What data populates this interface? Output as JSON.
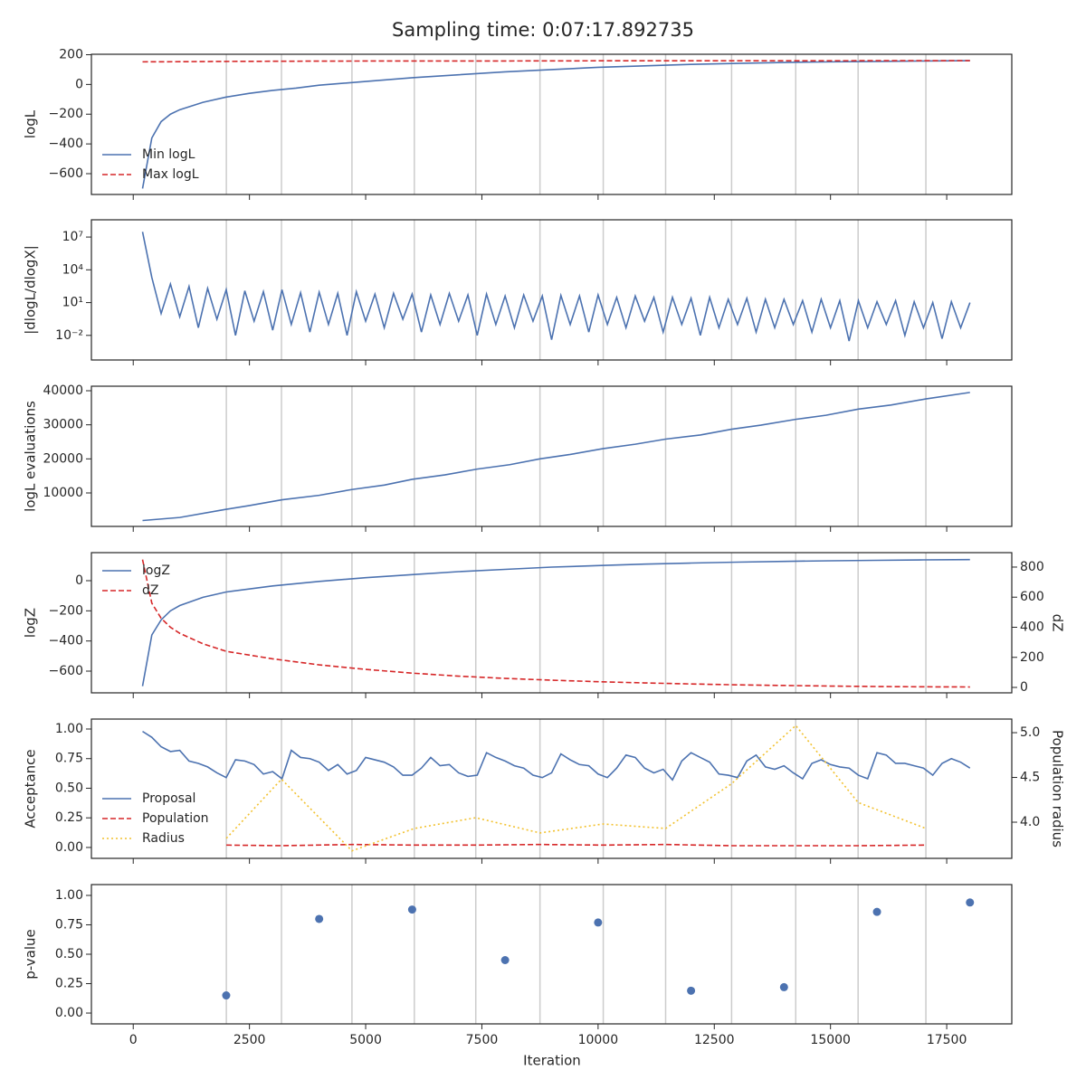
{
  "title": "Sampling time: 0:07:17.892735",
  "shared_x": {
    "xlabel": "Iteration",
    "xlim": [
      -900,
      18900
    ],
    "xticks": [
      0,
      2500,
      5000,
      7500,
      10000,
      12500,
      15000,
      17500
    ],
    "vlines": [
      2003,
      3189,
      4705,
      6047,
      7369,
      8750,
      10111,
      11453,
      12872,
      14252,
      15594,
      17052
    ]
  },
  "chart_data": [
    {
      "type": "line",
      "ylabel": "logL",
      "ylim": [
        -740,
        203
      ],
      "legend": "lower left",
      "yticks": [
        {
          "value": -600,
          "label": "−600"
        },
        {
          "value": -400,
          "label": "−400"
        },
        {
          "value": -200,
          "label": "−200"
        },
        0,
        200
      ],
      "series": [
        {
          "name": "Min logL",
          "color": "#4c72b0",
          "style": "solid",
          "x": [
            200,
            400,
            600,
            800,
            1000,
            1500,
            2000,
            2500,
            3000,
            3500,
            4000,
            5000,
            6000,
            7000,
            8000,
            9000,
            10000,
            11000,
            12000,
            13000,
            14000,
            15000,
            16000,
            17000,
            18000
          ],
          "values": [
            -700,
            -360,
            -250,
            -200,
            -170,
            -120,
            -85,
            -60,
            -40,
            -25,
            -5,
            20,
            45,
            65,
            85,
            100,
            115,
            125,
            135,
            142,
            148,
            152,
            155,
            158,
            160
          ]
        },
        {
          "name": "Max logL",
          "color": "#d62728",
          "style": "dashed",
          "x": [
            200,
            1000,
            2000,
            4000,
            6000,
            8000,
            10000,
            12000,
            14000,
            16000,
            18000
          ],
          "values": [
            152,
            153,
            155,
            157,
            158,
            158,
            159,
            159,
            159,
            160,
            160
          ]
        }
      ]
    },
    {
      "type": "line",
      "ylabel": "|dlogL/dlogX|",
      "log_y": true,
      "ylim": [
        5.6e-05,
        380000000.0
      ],
      "yticks": [
        {
          "value": 0.01,
          "label": "10⁻²"
        },
        {
          "value": 10,
          "label": "10¹"
        },
        {
          "value": 10000,
          "label": "10⁴"
        },
        {
          "value": 10000000,
          "label": "10⁷"
        }
      ],
      "series": [
        {
          "color": "#4c72b0",
          "style": "solid",
          "x": [
            200,
            400,
            600,
            800,
            1000,
            1200,
            1400,
            1600,
            1800,
            2000,
            2200,
            2400,
            2600,
            2800,
            3000,
            3200,
            3400,
            3600,
            3800,
            4000,
            4200,
            4400,
            4600,
            4800,
            5000,
            5200,
            5400,
            5600,
            5800,
            6000,
            6200,
            6400,
            6600,
            6800,
            7000,
            7200,
            7400,
            7600,
            7800,
            8000,
            8200,
            8400,
            8600,
            8800,
            9000,
            9200,
            9400,
            9600,
            9800,
            10000,
            10200,
            10400,
            10600,
            10800,
            11000,
            11200,
            11400,
            11600,
            11800,
            12000,
            12200,
            12400,
            12600,
            12800,
            13000,
            13200,
            13400,
            13600,
            13800,
            14000,
            14200,
            14400,
            14600,
            14800,
            15000,
            15200,
            15400,
            15600,
            15800,
            16000,
            16200,
            16400,
            16600,
            16800,
            17000,
            17200,
            17400,
            17600,
            17800,
            18000
          ],
          "values": [
            30000000,
            2000,
            1,
            500,
            0.5,
            300,
            0.05,
            200,
            0.3,
            150,
            0.01,
            120,
            0.2,
            100,
            0.03,
            150,
            0.1,
            80,
            0.02,
            90,
            0.1,
            70,
            0.01,
            100,
            0.2,
            60,
            0.05,
            70,
            0.3,
            60,
            0.02,
            50,
            0.1,
            70,
            0.2,
            50,
            0.01,
            60,
            0.1,
            40,
            0.05,
            50,
            0.2,
            40,
            0.004,
            45,
            0.1,
            40,
            0.02,
            50,
            0.1,
            30,
            0.05,
            40,
            0.2,
            30,
            0.02,
            30,
            0.1,
            25,
            0.01,
            30,
            0.05,
            20,
            0.1,
            25,
            0.02,
            20,
            0.05,
            20,
            0.1,
            15,
            0.02,
            20,
            0.05,
            15,
            0.003,
            15,
            0.05,
            12,
            0.1,
            15,
            0.01,
            12,
            0.05,
            10,
            0.005,
            12,
            0.05,
            10
          ]
        }
      ]
    },
    {
      "type": "line",
      "ylabel": "logL evaluations",
      "ylim": [
        177,
        41327
      ],
      "yticks": [
        10000,
        20000,
        30000,
        40000
      ],
      "series": [
        {
          "color": "#4c72b0",
          "style": "solid",
          "x": [
            200,
            1000,
            2000,
            2500,
            3200,
            4000,
            4700,
            5400,
            6000,
            6700,
            7400,
            8100,
            8750,
            9400,
            10100,
            10800,
            11450,
            12200,
            12870,
            13500,
            14250,
            14900,
            15600,
            16300,
            17050,
            18000
          ],
          "values": [
            1900,
            2800,
            5200,
            6300,
            8000,
            9300,
            11000,
            12300,
            14000,
            15300,
            17000,
            18300,
            20000,
            21300,
            23000,
            24300,
            25800,
            27000,
            28700,
            29900,
            31600,
            32800,
            34600,
            35800,
            37600,
            39500
          ]
        }
      ]
    },
    {
      "type": "line",
      "ylabel": "logZ",
      "y2label": "dZ",
      "legend": "upper left",
      "ylim": [
        -744,
        186
      ],
      "y2lim": [
        -36,
        896
      ],
      "yticks": [
        {
          "value": -600,
          "label": "−600"
        },
        {
          "value": -400,
          "label": "−400"
        },
        {
          "value": -200,
          "label": "−200"
        },
        0
      ],
      "y2ticks": [
        0,
        200,
        400,
        600,
        800
      ],
      "series": [
        {
          "name": "logZ",
          "color": "#4c72b0",
          "style": "solid",
          "x": [
            200,
            400,
            600,
            800,
            1000,
            1500,
            2000,
            3000,
            4000,
            5000,
            6000,
            7000,
            8000,
            9000,
            10000,
            11000,
            12000,
            13000,
            14000,
            15000,
            16000,
            17000,
            18000
          ],
          "values": [
            -700,
            -360,
            -260,
            -200,
            -165,
            -110,
            -75,
            -35,
            -5,
            20,
            40,
            60,
            75,
            90,
            100,
            110,
            117,
            123,
            128,
            132,
            135,
            138,
            140
          ]
        },
        {
          "name": "dZ",
          "color": "#d62728",
          "style": "dashed",
          "axis": "y2",
          "x": [
            200,
            400,
            600,
            800,
            1000,
            1500,
            2000,
            3000,
            4000,
            5000,
            6000,
            7000,
            8000,
            9000,
            10000,
            11000,
            12000,
            13000,
            14000,
            15000,
            16000,
            17000,
            18000
          ],
          "values": [
            850,
            560,
            460,
            400,
            360,
            290,
            240,
            190,
            150,
            120,
            95,
            75,
            60,
            48,
            38,
            30,
            23,
            17,
            13,
            9,
            6,
            4,
            3
          ]
        }
      ]
    },
    {
      "type": "line",
      "ylabel": "Acceptance",
      "y2label": "Population radius",
      "legend": "lower left",
      "ylim": [
        -0.092,
        1.084
      ],
      "y2lim": [
        3.596,
        5.152
      ],
      "yticks": [
        {
          "value": 0,
          "label": "0.00"
        },
        {
          "value": 0.25,
          "label": "0.25"
        },
        {
          "value": 0.5,
          "label": "0.50"
        },
        {
          "value": 0.75,
          "label": "0.75"
        },
        {
          "value": 1,
          "label": "1.00"
        }
      ],
      "y2ticks": [
        {
          "value": 4,
          "label": "4.0"
        },
        {
          "value": 4.5,
          "label": "4.5"
        },
        {
          "value": 5,
          "label": "5.0"
        }
      ],
      "series": [
        {
          "name": "Proposal",
          "color": "#4c72b0",
          "style": "solid",
          "x": [
            200,
            400,
            600,
            800,
            1000,
            1200,
            1400,
            1600,
            1800,
            2000,
            2200,
            2400,
            2600,
            2800,
            3000,
            3200,
            3400,
            3600,
            3800,
            4000,
            4200,
            4400,
            4600,
            4800,
            5000,
            5200,
            5400,
            5600,
            5800,
            6000,
            6200,
            6400,
            6600,
            6800,
            7000,
            7200,
            7400,
            7600,
            7800,
            8000,
            8200,
            8400,
            8600,
            8800,
            9000,
            9200,
            9400,
            9600,
            9800,
            10000,
            10200,
            10400,
            10600,
            10800,
            11000,
            11200,
            11400,
            11600,
            11800,
            12000,
            12200,
            12400,
            12600,
            12800,
            13000,
            13200,
            13400,
            13600,
            13800,
            14000,
            14200,
            14400,
            14600,
            14800,
            15000,
            15200,
            15400,
            15600,
            15800,
            16000,
            16200,
            16400,
            16600,
            16800,
            17000,
            17200,
            17400,
            17600,
            17800,
            18000
          ],
          "values": [
            0.98,
            0.93,
            0.85,
            0.81,
            0.82,
            0.73,
            0.71,
            0.68,
            0.63,
            0.59,
            0.74,
            0.73,
            0.7,
            0.62,
            0.64,
            0.58,
            0.82,
            0.76,
            0.75,
            0.72,
            0.65,
            0.7,
            0.62,
            0.65,
            0.76,
            0.74,
            0.72,
            0.68,
            0.61,
            0.61,
            0.67,
            0.76,
            0.69,
            0.7,
            0.63,
            0.6,
            0.61,
            0.8,
            0.76,
            0.73,
            0.69,
            0.67,
            0.61,
            0.59,
            0.63,
            0.79,
            0.74,
            0.7,
            0.69,
            0.62,
            0.59,
            0.67,
            0.78,
            0.76,
            0.67,
            0.63,
            0.66,
            0.57,
            0.73,
            0.8,
            0.76,
            0.72,
            0.62,
            0.61,
            0.59,
            0.73,
            0.78,
            0.68,
            0.66,
            0.69,
            0.63,
            0.58,
            0.71,
            0.74,
            0.7,
            0.68,
            0.67,
            0.61,
            0.58,
            0.8,
            0.78,
            0.71,
            0.71,
            0.69,
            0.67,
            0.61,
            0.71,
            0.75,
            0.72,
            0.67
          ]
        },
        {
          "name": "Population",
          "color": "#d62728",
          "style": "dashed",
          "x": [
            2003,
            3189,
            4705,
            6047,
            7369,
            8750,
            10111,
            11453,
            12872,
            14252,
            15594,
            17052
          ],
          "values": [
            0.02,
            0.015,
            0.025,
            0.02,
            0.02,
            0.025,
            0.02,
            0.025,
            0.015,
            0.015,
            0.015,
            0.02
          ]
        },
        {
          "name": "Radius",
          "color": "#f2c12e",
          "style": "dotted",
          "axis": "y2",
          "x": [
            2003,
            3189,
            4705,
            6047,
            7369,
            8750,
            10111,
            11453,
            12872,
            14252,
            15594,
            17052
          ],
          "values": [
            3.82,
            4.48,
            3.68,
            3.93,
            4.05,
            3.88,
            3.98,
            3.93,
            4.43,
            5.08,
            4.22,
            3.93
          ]
        }
      ]
    },
    {
      "type": "scatter",
      "ylabel": "p-value",
      "ylim": [
        -0.092,
        1.092
      ],
      "color": "#4c72b0",
      "show_x_labels": true,
      "yticks": [
        {
          "value": 0,
          "label": "0.00"
        },
        {
          "value": 0.25,
          "label": "0.25"
        },
        {
          "value": 0.5,
          "label": "0.50"
        },
        {
          "value": 0.75,
          "label": "0.75"
        },
        {
          "value": 1,
          "label": "1.00"
        }
      ],
      "x": [
        2000,
        4000,
        6000,
        8000,
        10000,
        12000,
        14000,
        16000,
        18000
      ],
      "values": [
        0.15,
        0.8,
        0.88,
        0.45,
        0.77,
        0.19,
        0.22,
        0.86,
        0.94
      ]
    }
  ]
}
